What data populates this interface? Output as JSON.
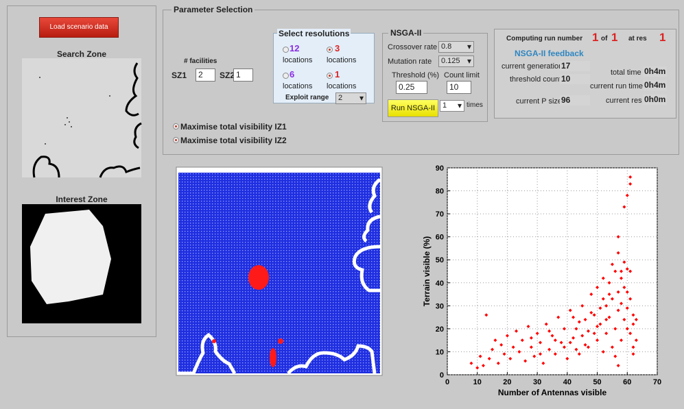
{
  "left_panel": {
    "load_button": "Load scenario data",
    "search_zone_title": "Search Zone",
    "interest_zone_title": "Interest Zone"
  },
  "parameters": {
    "title": "Parameter Selection",
    "facilities_label": "# facilities",
    "sz1_label": "SZ1",
    "sz1_value": "2",
    "sz2_label": "SZ2",
    "sz2_value": "1",
    "objective_1": "Maximise total visibility IZ1",
    "objective_2": "Maximise total visibility IZ2"
  },
  "resolutions": {
    "title": "Select resolutions",
    "options": [
      {
        "number": "12",
        "label": "locations"
      },
      {
        "number": "3",
        "label": "locations"
      },
      {
        "number": "6",
        "label": "locations"
      },
      {
        "number": "1",
        "label": "locations"
      }
    ],
    "exploit_label": "Exploit range",
    "exploit_value": "2"
  },
  "nsga": {
    "title": "NSGA-II",
    "crossover_label": "Crossover rate",
    "crossover_value": "0.8",
    "mutation_label": "Mutation rate",
    "mutation_value": "0.125",
    "threshold_label": "Threshold (%)",
    "threshold_value": "0.25",
    "count_label": "Count limit",
    "count_value": "10",
    "run_button": "Run NSGA-II",
    "times_value": "1",
    "times_label": "times"
  },
  "feedback": {
    "run_label": "Computing run number",
    "run_value": "1",
    "of_label": "of",
    "of_value": "1",
    "res_label": "at res",
    "res_value": "1",
    "title": "NSGA-II feedback",
    "generation_label": "current generation",
    "generation_value": "17",
    "threshold_label": "threshold count",
    "threshold_value": "10",
    "psize_label": "current P size",
    "psize_value": "96",
    "total_time_label": "total time",
    "total_time_value": "0h4m",
    "run_time_label": "current run time",
    "run_time_value": "0h4m",
    "res_time_label": "current res",
    "res_time_value": "0h0m"
  },
  "chart_data": {
    "type": "scatter",
    "x_label": "Number of Antennas visible",
    "y_label": "Terrain visible (%)",
    "color": "#ff0000",
    "grid": true,
    "xlim": [
      0,
      70
    ],
    "ylim": [
      0,
      90
    ],
    "xticks": [
      0,
      10,
      20,
      30,
      40,
      50,
      60,
      70
    ],
    "yticks": [
      0,
      10,
      20,
      30,
      40,
      50,
      60,
      70,
      80,
      90
    ],
    "x": [
      8,
      10,
      11,
      12,
      13,
      14,
      15,
      16,
      17,
      18,
      19,
      20,
      21,
      22,
      23,
      24,
      25,
      26,
      27,
      28,
      29,
      30,
      31,
      32,
      33,
      34,
      35,
      36,
      37,
      38,
      39,
      40,
      41,
      42,
      43,
      44,
      45,
      46,
      47,
      48,
      49,
      50,
      50,
      51,
      52,
      52,
      53,
      53,
      54,
      54,
      55,
      55,
      56,
      56,
      57,
      57,
      57,
      57,
      58,
      58,
      58,
      59,
      59,
      59,
      60,
      60,
      60,
      60,
      61,
      61,
      61,
      61,
      61,
      62,
      62,
      62,
      63,
      63,
      58,
      56,
      55,
      54,
      53,
      52,
      51,
      50,
      49,
      48,
      47,
      46,
      45,
      44,
      43,
      42,
      41,
      39,
      36,
      34,
      31,
      28,
      60,
      59,
      57,
      62
    ],
    "values": [
      5,
      3,
      8,
      4,
      26,
      7,
      11,
      15,
      5,
      13,
      9,
      17,
      7,
      12,
      19,
      10,
      15,
      6,
      21,
      12,
      8,
      18,
      14,
      5,
      22,
      11,
      17,
      9,
      25,
      14,
      20,
      7,
      28,
      16,
      11,
      23,
      30,
      13,
      19,
      35,
      26,
      15,
      38,
      22,
      42,
      10,
      30,
      18,
      40,
      25,
      33,
      12,
      45,
      20,
      36,
      28,
      53,
      60,
      42,
      15,
      31,
      73,
      24,
      38,
      78,
      46,
      20,
      29,
      86,
      83,
      45,
      18,
      33,
      26,
      12,
      22,
      24,
      15,
      45,
      8,
      48,
      35,
      24,
      33,
      29,
      21,
      18,
      27,
      12,
      24,
      17,
      9,
      20,
      25,
      14,
      12,
      15,
      19,
      9,
      16,
      36,
      49,
      4,
      9
    ]
  }
}
